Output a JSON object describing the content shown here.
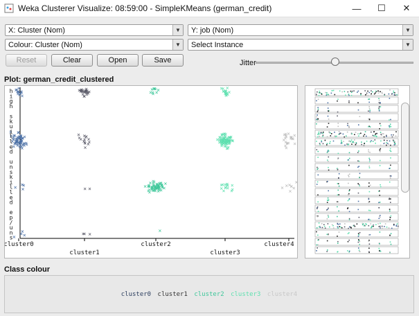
{
  "window": {
    "title": "Weka Clusterer Visualize: 08:59:00 - SimpleKMeans (german_credit)",
    "minimize_icon": "minimize-icon",
    "maximize_icon": "maximize-icon",
    "close_icon": "close-icon"
  },
  "controls": {
    "x_axis": "X: Cluster (Nom)",
    "y_axis": "Y: job (Nom)",
    "colour": "Colour: Cluster (Nom)",
    "select_instance": "Select Instance",
    "reset": "Reset",
    "clear": "Clear",
    "open": "Open",
    "save": "Save",
    "jitter_label": "Jitter",
    "jitter_value": 0.5
  },
  "plot": {
    "title": "Plot: german_credit_clustered",
    "x_ticks": [
      "cluster0",
      "cluster1",
      "cluster2",
      "cluster3",
      "cluster4"
    ],
    "y_label_chars": [
      "h",
      "i",
      "g",
      "h",
      "",
      "s",
      "k",
      "u",
      "i",
      "l",
      "l",
      "e",
      "d",
      "",
      "u",
      "n",
      "s",
      "k",
      "i",
      "l",
      "l",
      "e",
      "d",
      "",
      "e",
      "p",
      "/",
      "u",
      "n",
      "s"
    ],
    "y_levels": [
      "high skill",
      "skilled",
      "unskilled",
      "unemp/unskilled"
    ]
  },
  "chart_data": {
    "type": "scatter",
    "title": "Plot: german_credit_clustered",
    "xlabel": "Cluster",
    "ylabel": "job",
    "categories_x": [
      "cluster0",
      "cluster1",
      "cluster2",
      "cluster3",
      "cluster4"
    ],
    "categories_y": [
      "high skill",
      "skilled",
      "unskilled",
      "unemp/unskilled"
    ],
    "series": [
      {
        "name": "cluster0",
        "color": "#4a6fa5",
        "counts": {
          "high skill": 12,
          "skilled": 60,
          "unskilled": 4,
          "unemp/unskilled": 4
        }
      },
      {
        "name": "cluster1",
        "color": "#5a5a68",
        "counts": {
          "high skill": 28,
          "skilled": 14,
          "unskilled": 2,
          "unemp/unskilled": 3
        }
      },
      {
        "name": "cluster2",
        "color": "#3ec79a",
        "counts": {
          "high skill": 10,
          "skilled": 0,
          "unskilled": 60,
          "unemp/unskilled": 1
        }
      },
      {
        "name": "cluster3",
        "color": "#5fe0b0",
        "counts": {
          "high skill": 18,
          "skilled": 90,
          "unskilled": 14,
          "unemp/unskilled": 0
        }
      },
      {
        "name": "cluster4",
        "color": "#bdbdbd",
        "counts": {
          "high skill": 0,
          "skilled": 20,
          "unskilled": 8,
          "unemp/unskilled": 0
        }
      }
    ]
  },
  "class_colour": {
    "title": "Class colour",
    "items": [
      {
        "label": "cluster0",
        "color": "#2b3e5e"
      },
      {
        "label": "cluster1",
        "color": "#333333"
      },
      {
        "label": "cluster2",
        "color": "#3ec79a"
      },
      {
        "label": "cluster3",
        "color": "#5fe0b0"
      },
      {
        "label": "cluster4",
        "color": "#c8c8c8"
      }
    ]
  }
}
